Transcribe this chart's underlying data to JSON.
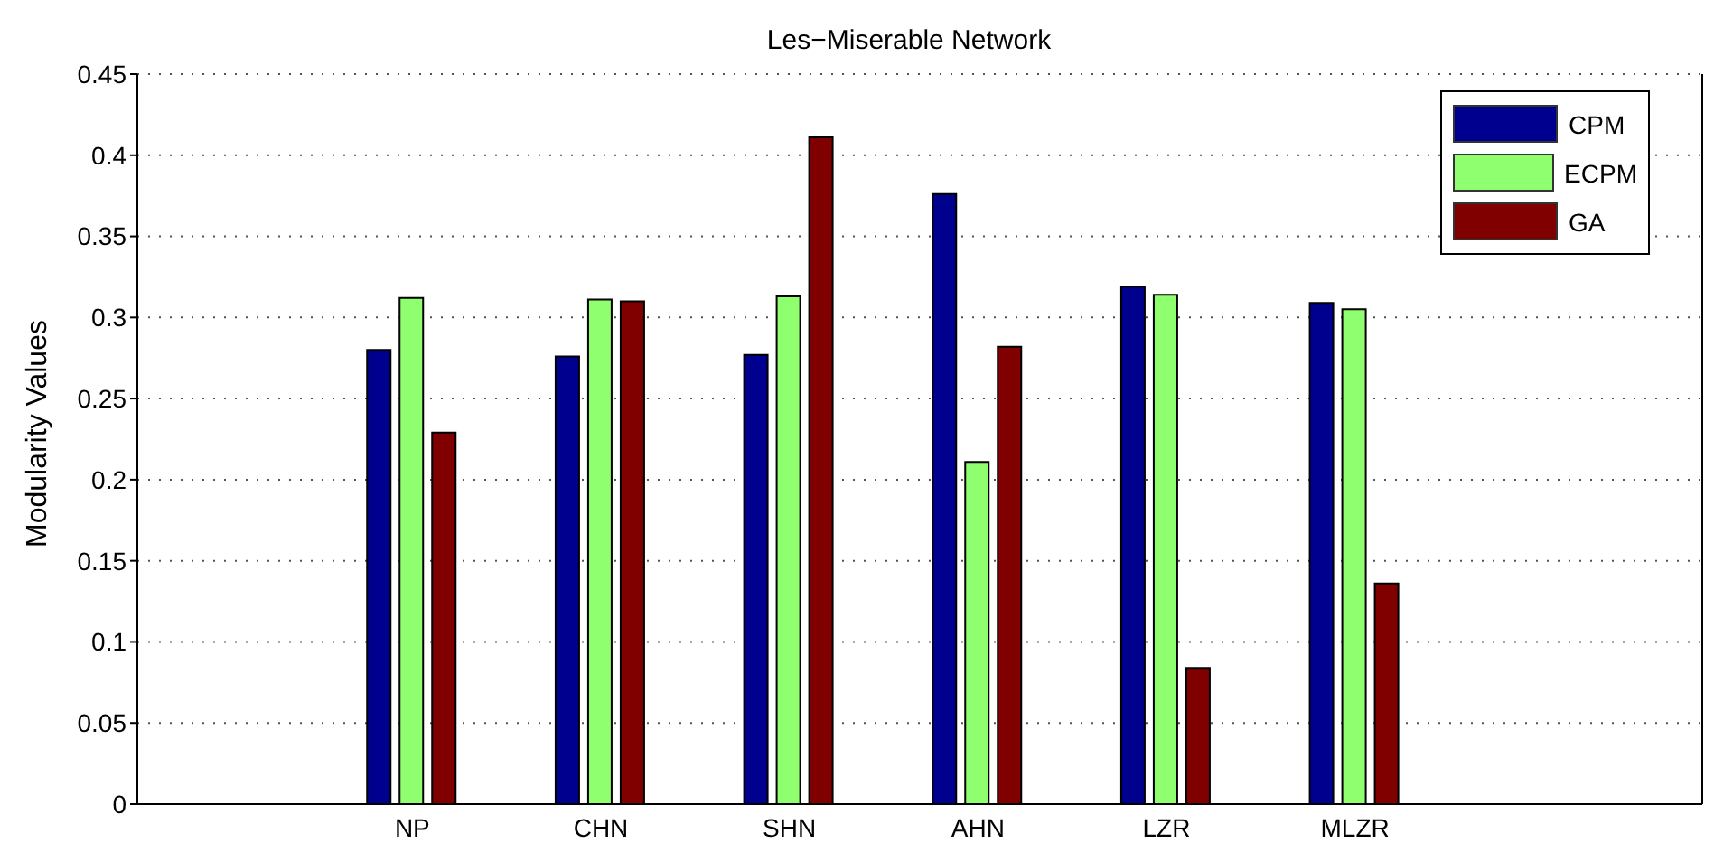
{
  "chart_data": {
    "type": "bar",
    "title": "Les−Miserable Network",
    "ylabel": "Modularity Values",
    "categories": [
      "NP",
      "CHN",
      "SHN",
      "AHN",
      "LZR",
      "MLZR"
    ],
    "series": [
      {
        "name": "CPM",
        "color": "#00008f",
        "values": [
          0.28,
          0.276,
          0.277,
          0.376,
          0.319,
          0.309
        ]
      },
      {
        "name": "ECPM",
        "color": "#8fff6f",
        "values": [
          0.312,
          0.311,
          0.313,
          0.211,
          0.314,
          0.305
        ]
      },
      {
        "name": "GA",
        "color": "#800000",
        "values": [
          0.229,
          0.31,
          0.411,
          0.282,
          0.084,
          0.136
        ]
      }
    ],
    "ylim": [
      0,
      0.45
    ],
    "yticks": [
      0,
      0.05,
      0.1,
      0.15,
      0.2,
      0.25,
      0.3,
      0.35,
      0.4,
      0.45
    ],
    "grid": "y",
    "legend": "top right"
  }
}
